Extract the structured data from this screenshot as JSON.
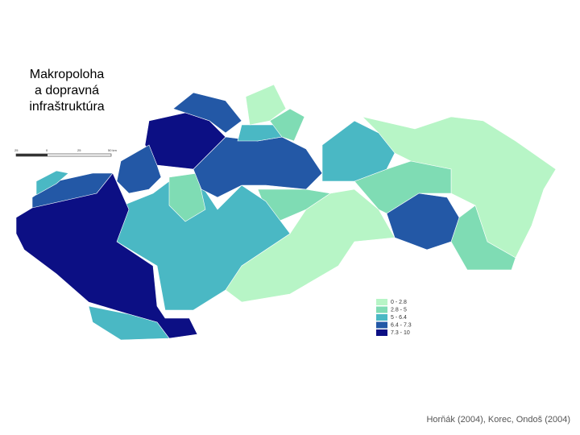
{
  "title": [
    "Makropoloha",
    "a dopravná",
    "infraštruktúra"
  ],
  "legend": [
    {
      "label": "0 - 2.8",
      "color": "#b7f5c6"
    },
    {
      "label": "2.8 - 5",
      "color": "#7fdcb4"
    },
    {
      "label": "5 - 6.4",
      "color": "#4ab8c4"
    },
    {
      "label": "6.4 - 7.3",
      "color": "#2358a6"
    },
    {
      "label": "7.3 - 10",
      "color": "#0c0f84"
    }
  ],
  "scale_bar": [
    "25",
    "0",
    "25",
    "50 km"
  ],
  "source": "Horňák (2004), Korec, Ondoš (2004)"
}
